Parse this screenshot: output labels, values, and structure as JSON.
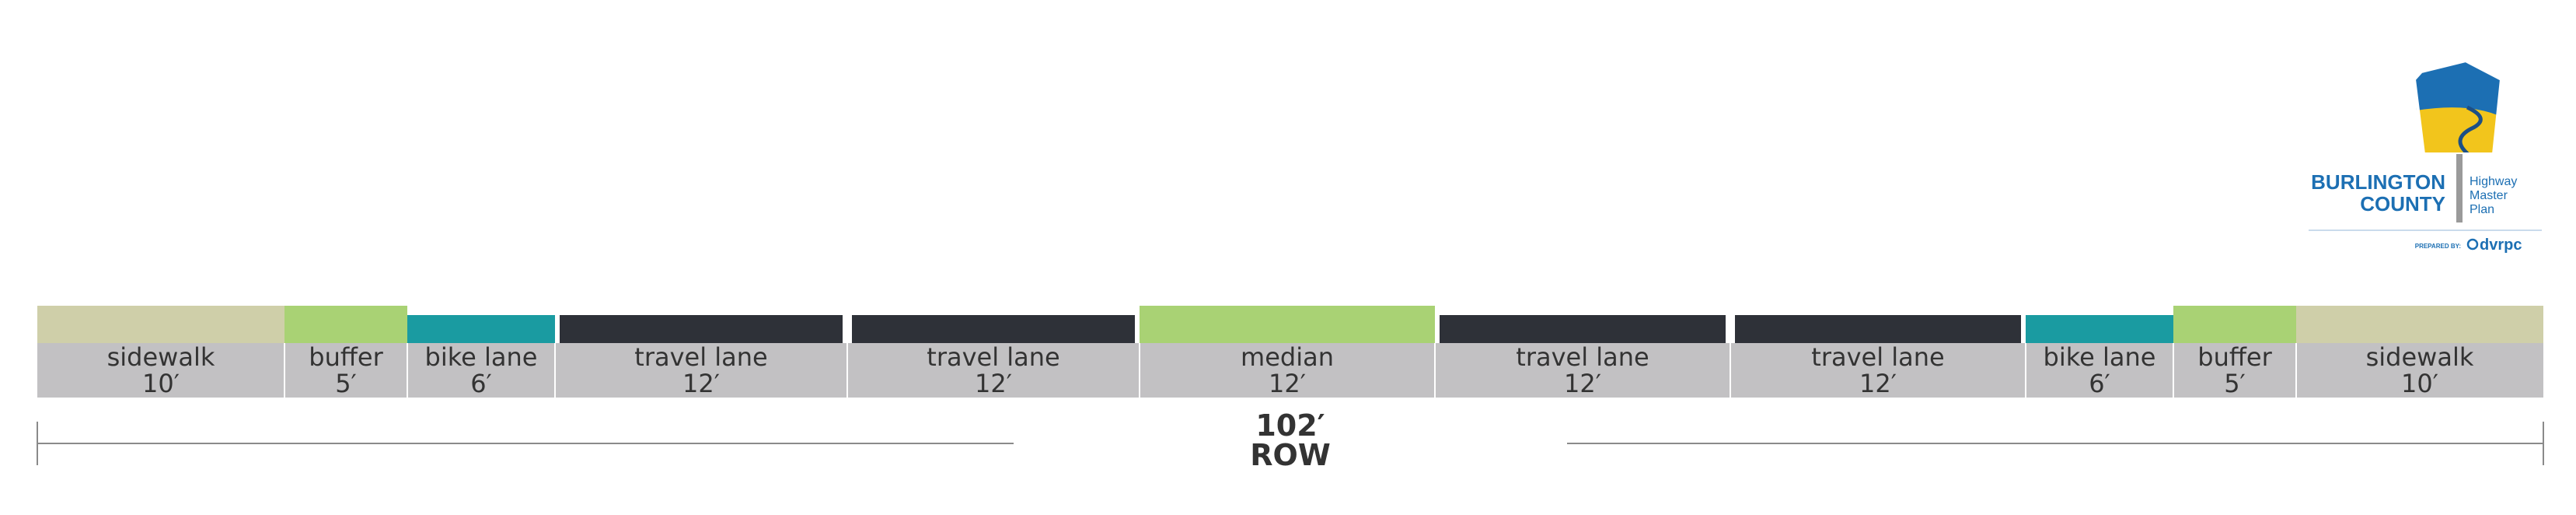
{
  "colors": {
    "sidewalk": "#cfcfa9",
    "buffer": "#a9d274",
    "bike_lane": "#1a9ba1",
    "travel_lane": "#2e3138",
    "median": "#a9d274",
    "label_band": "#c2c1c3",
    "logo_blue": "#1c6fb3",
    "logo_yellow": "#f2c51c"
  },
  "segments": [
    {
      "name": "sidewalk",
      "width": "10′",
      "kind": "sidewalk"
    },
    {
      "name": "buffer",
      "width": "5′",
      "kind": "buffer"
    },
    {
      "name": "bike lane",
      "width": "6′",
      "kind": "bike_lane"
    },
    {
      "name": "travel lane",
      "width": "12′",
      "kind": "travel_lane"
    },
    {
      "name": "travel lane",
      "width": "12′",
      "kind": "travel_lane"
    },
    {
      "name": "median",
      "width": "12′",
      "kind": "median"
    },
    {
      "name": "travel lane",
      "width": "12′",
      "kind": "travel_lane"
    },
    {
      "name": "travel lane",
      "width": "12′",
      "kind": "travel_lane"
    },
    {
      "name": "bike lane",
      "width": "6′",
      "kind": "bike_lane"
    },
    {
      "name": "buffer",
      "width": "5′",
      "kind": "buffer"
    },
    {
      "name": "sidewalk",
      "width": "10′",
      "kind": "sidewalk"
    }
  ],
  "row": {
    "total": "102′",
    "label": "ROW"
  },
  "logo": {
    "line1": "BURLINGTON",
    "line2": "COUNTY",
    "plan1": "Highway",
    "plan2": "Master",
    "plan3": "Plan",
    "prepared_by": "PREPARED BY:",
    "org": "dvrpc"
  }
}
